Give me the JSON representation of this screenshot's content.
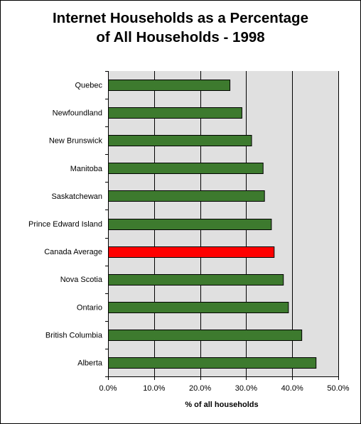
{
  "chart_data": {
    "type": "bar",
    "orientation": "horizontal",
    "title_lines": [
      "Internet Households as a Percentage",
      "of All Households - 1998"
    ],
    "xlabel": "% of all households",
    "ylabel": "",
    "xlim": [
      0,
      50
    ],
    "x_ticks": [
      0,
      10,
      20,
      30,
      40,
      50
    ],
    "x_tick_labels": [
      "0.0%",
      "10.0%",
      "20.0%",
      "30.0%",
      "40.0%",
      "50.0%"
    ],
    "grid": "vertical",
    "legend": "none",
    "categories": [
      "Quebec",
      "Newfoundland",
      "New Brunswick",
      "Manitoba",
      "Saskatchewan",
      "Prince Edward Island",
      "Canada Average",
      "Nova Scotia",
      "Ontario",
      "British Columbia",
      "Alberta"
    ],
    "values": [
      26.4,
      29.0,
      31.1,
      33.6,
      33.9,
      35.4,
      36.0,
      38.0,
      39.1,
      42.0,
      45.1
    ],
    "colors": {
      "bar": "#3d7a2e",
      "highlight": "#ff0000",
      "highlight_category": "Canada Average",
      "plot_background": "#e0e0e0",
      "gridline": "#000000"
    }
  }
}
